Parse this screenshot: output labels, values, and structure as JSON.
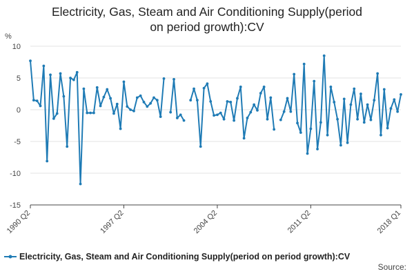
{
  "title_line1": "Electricity, Gas, Steam and Air Conditioning Supply(period",
  "title_line2": "on period growth):CV",
  "source_label": "Source:",
  "chart_data": {
    "type": "line",
    "title": "Electricity, Gas, Steam and Air Conditioning Supply(period on period growth):CV",
    "ylabel": "%",
    "ylim": [
      -15,
      10
    ],
    "yticks": [
      10,
      5,
      0,
      -5,
      -10,
      -15
    ],
    "xtick_labels": [
      "1990 Q2",
      "1997 Q2",
      "2004 Q2",
      "2011 Q2",
      "2018 Q1"
    ],
    "xtick_index": [
      0,
      28,
      56,
      84,
      111
    ],
    "grid": "horizontal",
    "legend_position": "bottom",
    "color": "#1f7bb5",
    "series": [
      {
        "name": "Electricity, Gas, Steam and Air Conditioning Supply(period on period growth):CV",
        "x": [
          "1990 Q2",
          "1990 Q3",
          "1990 Q4",
          "1991 Q1",
          "1991 Q2",
          "1991 Q3",
          "1991 Q4",
          "1992 Q1",
          "1992 Q2",
          "1992 Q3",
          "1992 Q4",
          "1993 Q1",
          "1993 Q2",
          "1993 Q3",
          "1993 Q4",
          "1994 Q1",
          "1994 Q2",
          "1994 Q3",
          "1994 Q4",
          "1995 Q1",
          "1995 Q2",
          "1995 Q3",
          "1995 Q4",
          "1996 Q1",
          "1996 Q2",
          "1996 Q3",
          "1996 Q4",
          "1997 Q1",
          "1997 Q2",
          "1997 Q3",
          "1997 Q4",
          "1998 Q1",
          "1998 Q2",
          "1998 Q3",
          "1998 Q4",
          "1999 Q1",
          "1999 Q2",
          "1999 Q3",
          "1999 Q4",
          "2000 Q1",
          "2000 Q2",
          "2000 Q3",
          "2000 Q4",
          "2001 Q1",
          "2001 Q2",
          "2001 Q3",
          "2001 Q4",
          "2002 Q1",
          "2002 Q2",
          "2002 Q3",
          "2002 Q4",
          "2003 Q1",
          "2003 Q2",
          "2003 Q3",
          "2003 Q4",
          "2004 Q1",
          "2004 Q2",
          "2004 Q3",
          "2004 Q4",
          "2005 Q1",
          "2005 Q2",
          "2005 Q3",
          "2005 Q4",
          "2006 Q1",
          "2006 Q2",
          "2006 Q3",
          "2006 Q4",
          "2007 Q1",
          "2007 Q2",
          "2007 Q3",
          "2007 Q4",
          "2008 Q1",
          "2008 Q2",
          "2008 Q3",
          "2008 Q4",
          "2009 Q1",
          "2009 Q2",
          "2009 Q3",
          "2009 Q4",
          "2010 Q1",
          "2010 Q2",
          "2010 Q3",
          "2010 Q4",
          "2011 Q1",
          "2011 Q2",
          "2011 Q3",
          "2011 Q4",
          "2012 Q1",
          "2012 Q2",
          "2012 Q3",
          "2012 Q4",
          "2013 Q1",
          "2013 Q2",
          "2013 Q3",
          "2013 Q4",
          "2014 Q1",
          "2014 Q2",
          "2014 Q3",
          "2014 Q4",
          "2015 Q1",
          "2015 Q2",
          "2015 Q3",
          "2015 Q4",
          "2016 Q1",
          "2016 Q2",
          "2016 Q3",
          "2016 Q4",
          "2017 Q1",
          "2017 Q2",
          "2017 Q3",
          "2017 Q4",
          "2018 Q1"
        ],
        "values": [
          7.7,
          1.5,
          1.4,
          0.6,
          6.9,
          -8.1,
          5.5,
          -1.4,
          -0.6,
          5.7,
          2.1,
          -5.8,
          5.0,
          4.7,
          5.9,
          -11.7,
          3.3,
          -0.5,
          -0.5,
          -0.5,
          3.5,
          0.6,
          2.0,
          3.2,
          1.8,
          -0.6,
          0.9,
          -3.0,
          4.4,
          0.5,
          0.0,
          -0.2,
          1.9,
          2.2,
          1.2,
          0.5,
          1.0,
          1.9,
          1.5,
          -1.1,
          4.9,
          null,
          -0.4,
          4.8,
          -1.3,
          -0.8,
          -1.7,
          null,
          1.5,
          3.3,
          1.5,
          -5.8,
          3.4,
          4.1,
          1.3,
          -0.9,
          -0.8,
          -0.5,
          -1.5,
          1.3,
          1.2,
          -1.7,
          1.8,
          3.6,
          -4.5,
          -1.3,
          -0.4,
          0.8,
          -0.1,
          2.6,
          3.6,
          -1.5,
          1.9,
          -3.1,
          null,
          -1.6,
          -0.3,
          1.8,
          -0.3,
          5.6,
          -2.1,
          -3.6,
          7.2,
          -6.9,
          -3.0,
          4.5,
          -6.2,
          -2.0,
          8.5,
          -4.0,
          3.6,
          1.2,
          -1.5,
          -5.6,
          1.7,
          -5.2,
          0.8,
          3.3,
          -1.5,
          2.5,
          -2.0,
          0.8,
          -1.6,
          1.5,
          5.7,
          -4.0,
          3.2,
          -2.9,
          0.2,
          1.6,
          -0.3,
          2.4
        ]
      }
    ]
  }
}
